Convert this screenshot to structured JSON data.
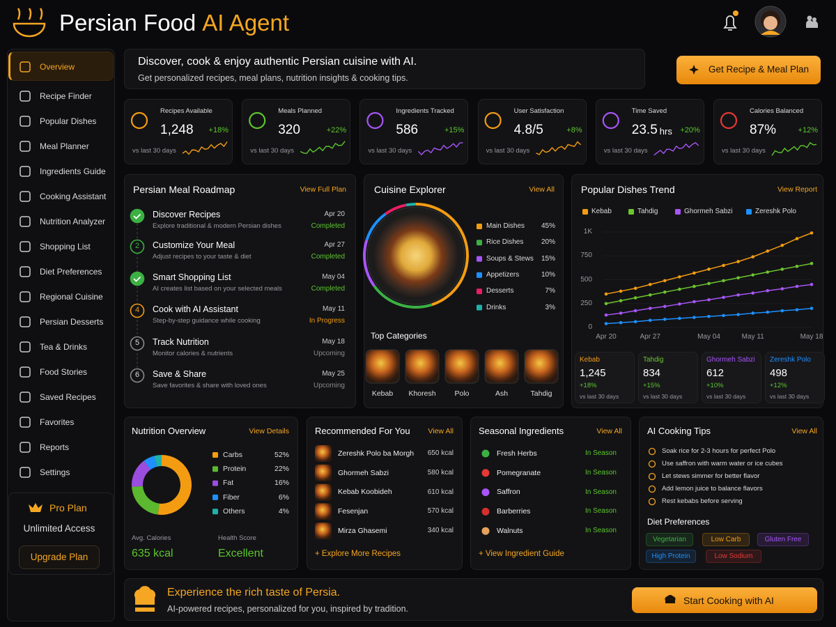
{
  "header": {
    "title": "Persian Food",
    "title_accent": "AI Agent"
  },
  "sidebar": {
    "items": [
      "Overview",
      "Recipe Finder",
      "Popular Dishes",
      "Meal Planner",
      "Ingredients Guide",
      "Cooking Assistant",
      "Nutrition Analyzer",
      "Shopping List",
      "Diet Preferences",
      "Regional Cuisine",
      "Persian Desserts",
      "Tea & Drinks",
      "Food Stories",
      "Saved Recipes",
      "Favorites",
      "Reports",
      "Settings"
    ],
    "active": 0,
    "pro_plan": {
      "title": "Pro Plan",
      "subtitle": "Unlimited Access",
      "button": "Upgrade Plan"
    }
  },
  "hero": {
    "title": "Discover, cook & enjoy authentic Persian cuisine with AI.",
    "subtitle": "Get personalized recipes, meal plans, nutrition insights & cooking tips.",
    "button": "Get Recipe & Meal Plan"
  },
  "stats": [
    {
      "label": "Recipes Available",
      "value": "1,248",
      "change": "+18%",
      "period": "vs last 30 days",
      "color": "#f39c12"
    },
    {
      "label": "Meals Planned",
      "value": "320",
      "change": "+22%",
      "period": "vs last 30 days",
      "color": "#5cc62f"
    },
    {
      "label": "Ingredients Tracked",
      "value": "586",
      "change": "+15%",
      "period": "vs last 30 days",
      "color": "#a855f7"
    },
    {
      "label": "User Satisfaction",
      "value": "4.8/5",
      "change": "+8%",
      "period": "vs last 30 days",
      "color": "#f39c12"
    },
    {
      "label": "Time Saved",
      "value": "23.5",
      "unit": "hrs",
      "change": "+20%",
      "period": "vs last 30 days",
      "color": "#a855f7"
    },
    {
      "label": "Calories Balanced",
      "value": "87%",
      "change": "+12%",
      "period": "vs last 30 days",
      "color": "#e53935"
    }
  ],
  "roadmap": {
    "title": "Persian Meal Roadmap",
    "link": "View Full Plan",
    "steps": [
      {
        "title": "Discover Recipes",
        "description": "Explore traditional & modern Persian dishes",
        "date": "Apr 20",
        "status": "Completed",
        "color": "#3cb043"
      },
      {
        "marker": "2",
        "title": "Customize Your Meal",
        "description": "Adjust recipes to your taste & diet",
        "date": "Apr 27",
        "status": "Completed",
        "color": "#3cb043"
      },
      {
        "title": "Smart Shopping List",
        "description": "AI creates list based on your selected meals",
        "date": "May 04",
        "status": "Completed",
        "color": "#3cb043"
      },
      {
        "marker": "4",
        "title": "Cook with AI Assistant",
        "description": "Step-by-step guidance while cooking",
        "date": "May 11",
        "status": "In Progress",
        "color": "#f39c12"
      },
      {
        "marker": "5",
        "title": "Track Nutrition",
        "description": "Monitor calories & nutrients",
        "date": "May 18",
        "status": "Upcoming",
        "color": "#8a8a8a"
      },
      {
        "marker": "6",
        "title": "Save & Share",
        "description": "Save favorites & share with loved ones",
        "date": "May 25",
        "status": "Upcoming",
        "color": "#8a8a8a"
      }
    ]
  },
  "cuisine_explorer": {
    "title": "Cuisine Explorer",
    "link": "View All",
    "chart_data": {
      "type": "pie",
      "categories": [
        "Main Dishes",
        "Rice Dishes",
        "Soups & Stews",
        "Appetizers",
        "Desserts",
        "Drinks"
      ],
      "values": [
        45,
        20,
        15,
        10,
        7,
        3
      ],
      "value_labels": [
        "45%",
        "20%",
        "15%",
        "10%",
        "7%",
        "3%"
      ],
      "colors": [
        "#f39c12",
        "#3cb043",
        "#a855f7",
        "#1e90ff",
        "#e91e63",
        "#20b2aa"
      ]
    },
    "top_categories": {
      "title": "Top Categories",
      "items": [
        "Kebab",
        "Khoresh",
        "Polo",
        "Ash",
        "Tahdig"
      ]
    }
  },
  "dishes_trend": {
    "title": "Popular Dishes Trend",
    "link": "View Report",
    "chart_data": {
      "type": "line",
      "x": [
        "Apr 20",
        null,
        null,
        "Apr 27",
        null,
        null,
        null,
        "May 04",
        null,
        null,
        "May 11",
        null,
        null,
        null,
        "May 18"
      ],
      "series": [
        {
          "name": "Kebab",
          "color": "#f39c12",
          "values": [
            350,
            380,
            410,
            450,
            490,
            530,
            570,
            610,
            650,
            690,
            740,
            800,
            860,
            930,
            990
          ]
        },
        {
          "name": "Tahdig",
          "color": "#6cc62f",
          "values": [
            250,
            280,
            310,
            340,
            370,
            400,
            430,
            460,
            490,
            520,
            550,
            580,
            610,
            640,
            670
          ]
        },
        {
          "name": "Ghormeh Sabzi",
          "color": "#a855f7",
          "values": [
            130,
            150,
            175,
            200,
            220,
            245,
            270,
            290,
            315,
            340,
            360,
            385,
            405,
            430,
            450
          ]
        },
        {
          "name": "Zereshk Polo",
          "color": "#1e90ff",
          "values": [
            40,
            50,
            60,
            75,
            85,
            95,
            105,
            115,
            125,
            135,
            150,
            160,
            175,
            185,
            200
          ]
        }
      ],
      "ylim": [
        0,
        1000
      ],
      "yticks": [
        0,
        250,
        500,
        750,
        {
          "value": 1000,
          "label": "1K"
        }
      ]
    },
    "summary": [
      {
        "name": "Kebab",
        "value": "1,245",
        "change": "+18%",
        "period": "vs last 30 days"
      },
      {
        "name": "Tahdig",
        "value": "834",
        "change": "+15%",
        "period": "vs last 30 days"
      },
      {
        "name": "Ghormeh Sabzi",
        "value": "612",
        "change": "+10%",
        "period": "vs last 30 days"
      },
      {
        "name": "Zereshk Polo",
        "value": "498",
        "change": "+12%",
        "period": "vs last 30 days"
      }
    ]
  },
  "nutrition": {
    "title": "Nutrition Overview",
    "link": "View Details",
    "chart_data": {
      "type": "pie",
      "categories": [
        "Carbs",
        "Protein",
        "Fat",
        "Fiber",
        "Others"
      ],
      "values": [
        52,
        22,
        16,
        6,
        4
      ],
      "value_labels": [
        "52%",
        "22%",
        "16%",
        "6%",
        "4%"
      ],
      "colors": [
        "#f39c12",
        "#5cb82f",
        "#9b4de0",
        "#1e90ff",
        "#20b2aa"
      ]
    },
    "avg_calories": {
      "label": "Avg. Calories",
      "value": "635 kcal"
    },
    "health_score": {
      "label": "Health Score",
      "value": "Excellent"
    }
  },
  "recommended": {
    "title": "Recommended For You",
    "link": "View All",
    "items": [
      {
        "name": "Zereshk Polo ba Morgh",
        "calories": "650 kcal"
      },
      {
        "name": "Ghormeh Sabzi",
        "calories": "580 kcal"
      },
      {
        "name": "Kebab Koobideh",
        "calories": "610 kcal"
      },
      {
        "name": "Fesenjan",
        "calories": "570 kcal"
      },
      {
        "name": "Mirza Ghasemi",
        "calories": "340 kcal"
      }
    ],
    "footer_link": "+ Explore More Recipes"
  },
  "seasonal": {
    "title": "Seasonal Ingredients",
    "link": "View All",
    "items": [
      {
        "name": "Fresh Herbs",
        "status": "In Season",
        "color": "#3cb043"
      },
      {
        "name": "Pomegranate",
        "status": "In Season",
        "color": "#e53935"
      },
      {
        "name": "Saffron",
        "status": "In Season",
        "color": "#a855f7"
      },
      {
        "name": "Barberries",
        "status": "In Season",
        "color": "#d32f2f"
      },
      {
        "name": "Walnuts",
        "status": "In Season",
        "color": "#e8a15c"
      }
    ],
    "footer_link": "+ View Ingredient Guide"
  },
  "tips": {
    "title": "AI Cooking Tips",
    "link": "View All",
    "items": [
      "Soak rice for 2-3 hours for perfect Polo",
      "Use saffron with warm water or ice cubes",
      "Let stews simmer for better flavor",
      "Add lemon juice to balance flavors",
      "Rest kebabs before serving"
    ],
    "diet_title": "Diet Preferences",
    "diet_tags": [
      {
        "label": "Vegetarian",
        "color": "#3cb043"
      },
      {
        "label": "Low Carb",
        "color": "#f39c12"
      },
      {
        "label": "Gluten Free",
        "color": "#a855f7"
      },
      {
        "label": "High Protein",
        "color": "#1e90ff"
      },
      {
        "label": "Low Sodium",
        "color": "#e53935"
      }
    ]
  },
  "footer": {
    "title": "Experience the rich taste of Persia.",
    "subtitle": "AI-powered recipes, personalized for you, inspired by tradition.",
    "button": "Start Cooking with AI"
  }
}
